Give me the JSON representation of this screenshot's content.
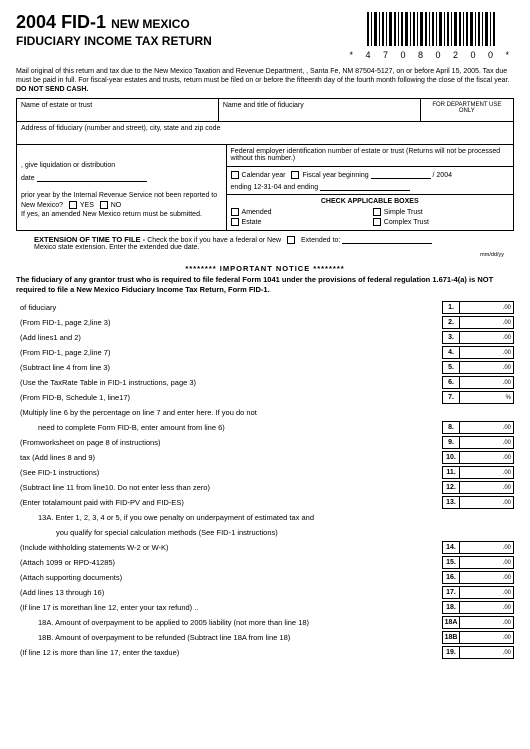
{
  "header": {
    "year": "2004",
    "form_code": "FID-1",
    "state": "NEW MEXICO",
    "subtitle": "FIDUCIARY INCOME TAX RETURN",
    "barcode_number": "* 4 7 0 8 0 2 0 0 *"
  },
  "mail": {
    "text_1": "Mail original of this return and tax due to the New Mexico Taxation and Revenue Department, , Santa Fe, NM 87504-5127, on or before April 15, 2005. Tax due must be paid in full. For fiscal-year estates and trusts, return must be filed on or before the fifteenth day of the fourth month following the close of the fiscal year. ",
    "bold": "DO NOT SEND CASH."
  },
  "grid": {
    "name_estate": "Name of estate or trust",
    "name_fid": "Name and title of fiduciary",
    "dept_use": "FOR DEPARTMENT USE ONLY",
    "addr": "Address of fiduciary (number and street), city, state and zip code",
    "fein": "Federal employer identification number of estate or trust (Returns will not be processed without this number.)",
    "liq": ", give liquidation or distribution",
    "date": "date",
    "cal": "Calendar year",
    "fy_begin": "Fiscal year beginning",
    "fy_suffix": "/ 2004",
    "ending": "ending 12-31-04 and ending",
    "prior1": "prior year by the Internal Revenue Service not been reported to",
    "prior2": "New Mexico?",
    "yes": "YES",
    "no": "NO",
    "prior3": "If yes, an amended New Mexico return must be submitted.",
    "chk_hdr": "CHECK APPLICABLE BOXES",
    "amended": "Amended",
    "simple": "Simple Trust",
    "estate": "Estate",
    "complex": "Complex Trust"
  },
  "ext": {
    "bold": "EXTENSION OF TIME TO FILE - ",
    "text1": "Check the box if you have a federal or New",
    "ext_to": "Extended to:",
    "text2": "Mexico state extension. Enter the extended due date.",
    "mmddyy": "mm/dd/yy"
  },
  "notice": {
    "stars_title": "******** IMPORTANT NOTICE ********",
    "body": "The fiduciary of any grantor trust who is required to file federal Form 1041 under the provisions of federal regulation 1.671-4(a) is NOT required to file a New Mexico Fiduciary Income Tax Return, Form FID-1."
  },
  "lines": [
    {
      "desc": "of fiduciary",
      "num": "1.",
      "unit": ".00"
    },
    {
      "desc": "(From FID-1, page 2,line 3)",
      "num": "2.",
      "unit": ".00"
    },
    {
      "desc": "(Add lines1 and 2)",
      "num": "3.",
      "unit": ".00"
    },
    {
      "desc": "(From FID-1, page 2,line 7)",
      "num": "4.",
      "unit": ".00"
    },
    {
      "desc": "(Subtract line 4 from line 3)",
      "num": "5.",
      "unit": ".00"
    },
    {
      "desc": "(Use the TaxRate Table in FID-1 instructions, page 3)",
      "num": "6.",
      "unit": ".00"
    },
    {
      "desc": "(From FID-B, Schedule 1, line17)",
      "num": "7.",
      "unit": "%"
    },
    {
      "desc": "(Multiply line 6 by the percentage on line 7 and enter here. If you do not",
      "num": "",
      "unit": ""
    },
    {
      "desc": "need to complete Form FID-B, enter amount from line 6)",
      "num": "8.",
      "unit": ".00",
      "ind": "ind1"
    },
    {
      "desc": "(Fromworksheet on page 8 of instructions)",
      "num": "9.",
      "unit": ".00"
    },
    {
      "desc": "tax (Add lines 8 and 9)",
      "num": "10.",
      "unit": ".00"
    },
    {
      "desc": "(See FID-1 instructions)",
      "num": "11.",
      "unit": ".00"
    },
    {
      "desc": "(Subtract line 11 from line10. Do not enter less than zero)",
      "num": "12.",
      "unit": ".00"
    },
    {
      "desc": "(Enter totalamount paid with FID-PV and FID-ES)",
      "num": "13.",
      "unit": ".00"
    },
    {
      "desc": "13A.  Enter 1, 2, 3, 4 or 5, if you owe penalty on underpayment of estimated tax and",
      "num": "",
      "unit": "",
      "ind": "ind1"
    },
    {
      "desc": "you qualify for special calculation methods (See FID-1 instructions)",
      "num": "",
      "unit": "",
      "ind": "ind2"
    },
    {
      "desc": "(Include withholding statements W-2 or W-K)",
      "num": "14.",
      "unit": ".00"
    },
    {
      "desc": "(Attach 1099 or RPD-41285)",
      "num": "15.",
      "unit": ".00"
    },
    {
      "desc": "(Attach supporting documents)",
      "num": "16.",
      "unit": ".00"
    },
    {
      "desc": "(Add lines 13 through 16)",
      "num": "17.",
      "unit": ".00"
    },
    {
      "desc": "(If line 17 is morethan line 12, enter your tax refund) ..",
      "num": "18.",
      "unit": ".00"
    },
    {
      "desc": "18A.  Amount of overpayment to be applied to 2005 liability (not more than line 18)",
      "num": "18A",
      "unit": ".00",
      "ind": "ind1"
    },
    {
      "desc": "18B.  Amount of overpayment to be refunded (Subtract line 18A from line 18)",
      "num": "18B",
      "unit": ".00",
      "ind": "ind1"
    },
    {
      "desc": "(If line 12 is more than line 17, enter the taxdue)",
      "num": "19.",
      "unit": ".00"
    }
  ]
}
